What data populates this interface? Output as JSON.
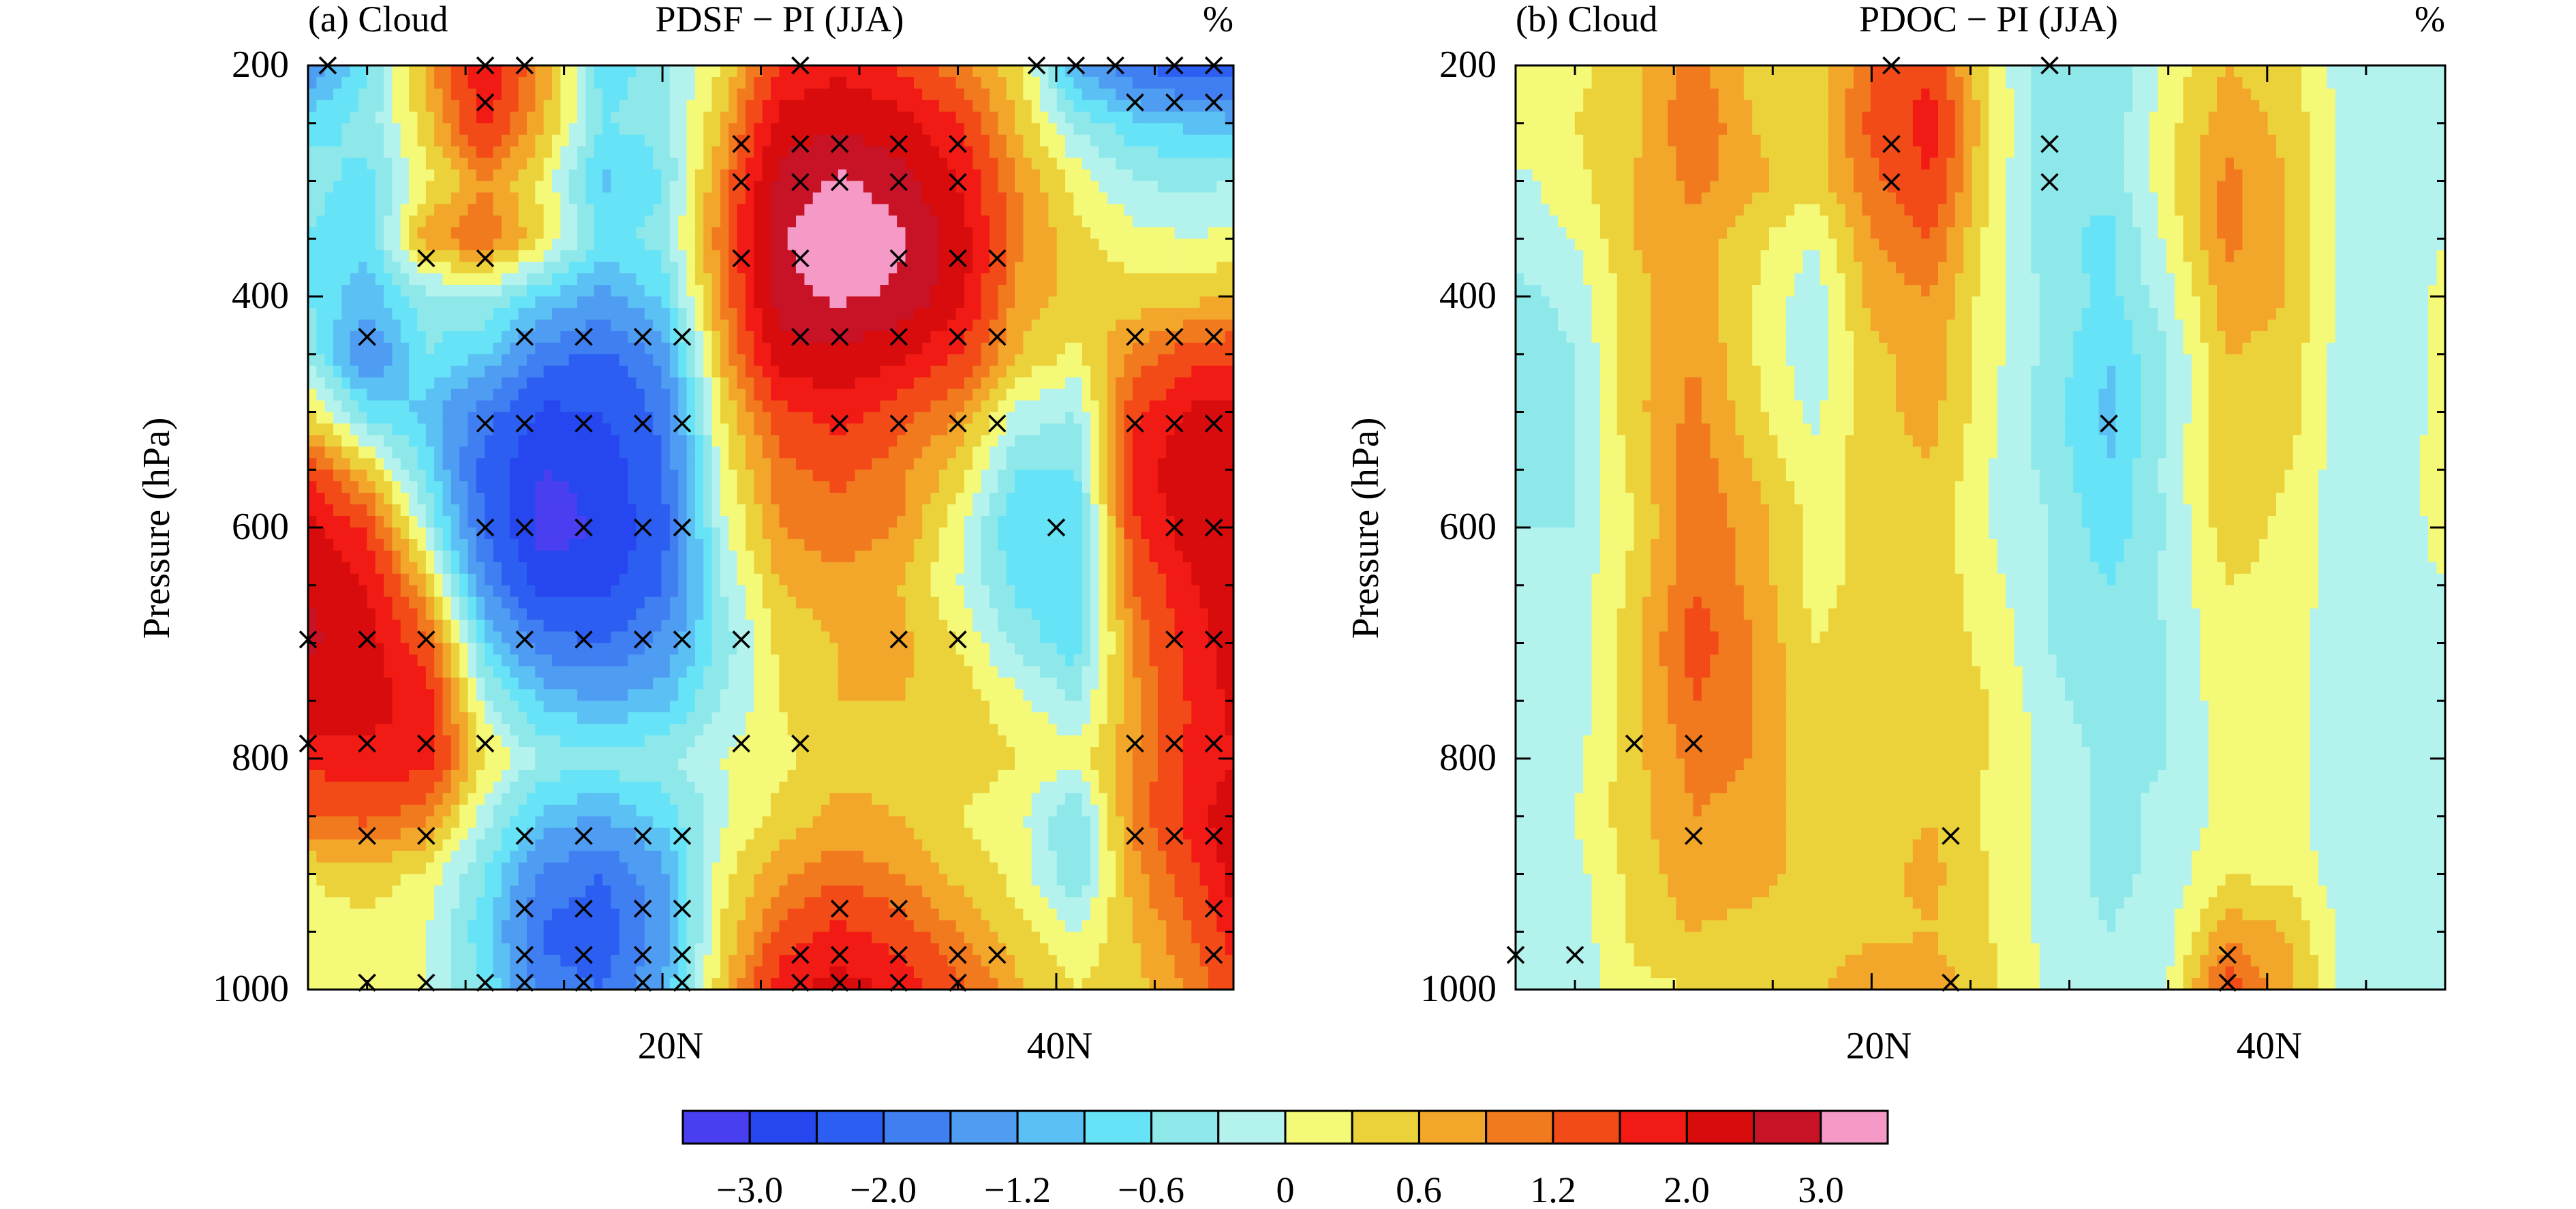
{
  "colormap": [
    "#4a3ff0",
    "#2646f0",
    "#2d5ef2",
    "#3f7ff2",
    "#4f9df2",
    "#5bc0f4",
    "#66e3f6",
    "#8ee8ea",
    "#b4f2ee",
    "#f4f978",
    "#ecd23a",
    "#f2a62a",
    "#f27a1e",
    "#f24b18",
    "#f21a14",
    "#d80c0c",
    "#c81226",
    "#f59ac6"
  ],
  "colorbar": {
    "tick_labels": [
      "−3.0",
      "−2.0",
      "−1.2",
      "−0.6",
      "0",
      "0.6",
      "1.2",
      "2.0",
      "3.0"
    ]
  },
  "chart_data": [
    {
      "type": "heatmap",
      "panel_label": "(a) Cloud",
      "title": "PDSF − PI (JJA)",
      "unit": "%",
      "ylabel": "Pressure (hPa)",
      "x_tick_labels": [
        "20N",
        "40N"
      ],
      "y_tick_labels": [
        "200",
        "400",
        "600",
        "800",
        "1000"
      ],
      "xlim_deg": [
        2,
        49
      ],
      "ylim_hpa": [
        1000,
        200
      ],
      "x_lat": [
        2,
        5,
        8,
        11,
        14,
        17,
        20,
        23,
        26,
        29,
        32,
        35,
        38,
        41,
        44,
        47,
        49
      ],
      "y_p": [
        200,
        250,
        300,
        350,
        400,
        450,
        500,
        550,
        600,
        650,
        700,
        750,
        800,
        850,
        900,
        950,
        1000
      ],
      "values": [
        [
          -1.6,
          -0.6,
          0.7,
          2.0,
          0.8,
          -0.8,
          -0.4,
          0.3,
          1.6,
          1.9,
          1.5,
          1.0,
          0.4,
          -1.2,
          -2.0,
          -2.4,
          -2.2
        ],
        [
          -0.7,
          -0.5,
          0.5,
          1.7,
          0.6,
          -0.6,
          -0.5,
          0.6,
          2.2,
          2.4,
          2.2,
          1.6,
          0.6,
          -0.4,
          -0.8,
          -1.0,
          -1.1
        ],
        [
          -0.5,
          -0.7,
          0.2,
          0.9,
          0.2,
          -1.0,
          -0.6,
          0.9,
          2.7,
          3.1,
          2.7,
          2.0,
          0.9,
          0.2,
          -0.3,
          -0.4,
          -0.3
        ],
        [
          -0.6,
          -0.8,
          0.8,
          1.2,
          0.3,
          -0.7,
          -0.5,
          1.1,
          2.9,
          3.6,
          3.1,
          2.3,
          1.0,
          0.4,
          0.1,
          0.0,
          0.1
        ],
        [
          -0.6,
          -1.1,
          -0.4,
          -0.3,
          -0.9,
          -1.3,
          -0.8,
          0.9,
          2.8,
          3.1,
          2.9,
          2.2,
          0.8,
          0.5,
          0.4,
          0.5,
          0.6
        ],
        [
          -0.4,
          -1.6,
          -0.6,
          -0.9,
          -1.8,
          -2.1,
          -1.5,
          0.7,
          2.3,
          2.4,
          2.1,
          1.6,
          0.6,
          0.2,
          1.0,
          1.4,
          1.5
        ],
        [
          0.3,
          -0.7,
          -1.0,
          -1.8,
          -2.6,
          -2.5,
          -1.9,
          0.3,
          1.5,
          1.8,
          1.4,
          0.9,
          -0.1,
          -0.3,
          1.5,
          2.1,
          2.2
        ],
        [
          1.5,
          0.5,
          -0.7,
          -2.2,
          -3.0,
          -2.8,
          -2.0,
          0.1,
          1.1,
          1.3,
          1.0,
          0.5,
          -0.6,
          -0.6,
          1.8,
          2.4,
          2.5
        ],
        [
          2.2,
          1.5,
          -0.2,
          -2.0,
          -3.3,
          -2.9,
          -2.2,
          -0.1,
          0.9,
          1.1,
          0.9,
          0.1,
          -0.9,
          -0.9,
          1.5,
          2.3,
          2.5
        ],
        [
          2.5,
          2.0,
          0.6,
          -1.6,
          -2.7,
          -2.7,
          -2.0,
          -0.3,
          0.6,
          0.8,
          0.6,
          0.0,
          -0.7,
          -0.8,
          1.2,
          2.0,
          2.3
        ],
        [
          2.6,
          2.2,
          1.3,
          -0.8,
          -1.8,
          -2.0,
          -1.5,
          -0.5,
          0.4,
          0.6,
          0.7,
          0.3,
          -0.4,
          -0.8,
          1.0,
          1.8,
          2.2
        ],
        [
          2.3,
          2.2,
          1.8,
          -0.2,
          -1.0,
          -1.2,
          -1.0,
          -0.3,
          0.3,
          0.6,
          0.6,
          0.5,
          0.1,
          -0.3,
          0.8,
          1.7,
          2.1
        ],
        [
          1.7,
          1.9,
          1.8,
          0.3,
          -0.4,
          -0.4,
          -0.4,
          0.0,
          0.2,
          0.5,
          0.5,
          0.5,
          0.3,
          0.1,
          0.9,
          1.7,
          2.0
        ],
        [
          1.2,
          1.3,
          1.0,
          -0.2,
          -1.0,
          -1.2,
          -0.8,
          -0.1,
          0.4,
          0.7,
          0.6,
          0.3,
          0.1,
          -0.6,
          1.0,
          1.8,
          2.3
        ],
        [
          0.3,
          0.5,
          0.2,
          -0.6,
          -1.7,
          -2.0,
          -1.3,
          0.2,
          0.8,
          1.1,
          0.9,
          0.5,
          0.2,
          -0.6,
          0.8,
          1.5,
          2.2
        ],
        [
          0.1,
          0.2,
          0.0,
          -0.8,
          -2.1,
          -2.3,
          -1.4,
          0.3,
          1.3,
          1.7,
          1.4,
          0.9,
          0.4,
          0.0,
          0.6,
          1.2,
          1.8
        ],
        [
          0.2,
          0.1,
          0.0,
          -0.6,
          -1.8,
          -2.0,
          -1.2,
          0.5,
          1.9,
          2.2,
          1.9,
          1.3,
          0.7,
          0.3,
          0.5,
          1.0,
          1.5
        ]
      ],
      "significance_markers": [
        [
          3,
          200
        ],
        [
          11,
          200
        ],
        [
          13,
          200
        ],
        [
          27,
          200
        ],
        [
          39,
          200
        ],
        [
          41,
          200
        ],
        [
          43,
          200
        ],
        [
          46,
          200
        ],
        [
          48,
          200
        ],
        [
          11,
          232
        ],
        [
          44,
          232
        ],
        [
          46,
          232
        ],
        [
          48,
          232
        ],
        [
          24,
          268
        ],
        [
          27,
          268
        ],
        [
          29,
          268
        ],
        [
          32,
          268
        ],
        [
          35,
          268
        ],
        [
          24,
          301
        ],
        [
          27,
          301
        ],
        [
          29,
          301
        ],
        [
          32,
          301
        ],
        [
          35,
          301
        ],
        [
          8,
          367
        ],
        [
          11,
          367
        ],
        [
          24,
          367
        ],
        [
          27,
          367
        ],
        [
          32,
          367
        ],
        [
          35,
          367
        ],
        [
          37,
          367
        ],
        [
          5,
          435
        ],
        [
          13,
          435
        ],
        [
          16,
          435
        ],
        [
          19,
          435
        ],
        [
          21,
          435
        ],
        [
          27,
          435
        ],
        [
          29,
          435
        ],
        [
          32,
          435
        ],
        [
          35,
          435
        ],
        [
          37,
          435
        ],
        [
          44,
          435
        ],
        [
          46,
          435
        ],
        [
          48,
          435
        ],
        [
          11,
          510
        ],
        [
          13,
          510
        ],
        [
          16,
          510
        ],
        [
          19,
          510
        ],
        [
          21,
          510
        ],
        [
          29,
          510
        ],
        [
          32,
          510
        ],
        [
          35,
          510
        ],
        [
          37,
          510
        ],
        [
          44,
          510
        ],
        [
          46,
          510
        ],
        [
          48,
          510
        ],
        [
          11,
          600
        ],
        [
          13,
          600
        ],
        [
          16,
          600
        ],
        [
          19,
          600
        ],
        [
          21,
          600
        ],
        [
          40,
          600
        ],
        [
          46,
          600
        ],
        [
          48,
          600
        ],
        [
          2,
          697
        ],
        [
          5,
          697
        ],
        [
          8,
          697
        ],
        [
          13,
          697
        ],
        [
          16,
          697
        ],
        [
          19,
          697
        ],
        [
          21,
          697
        ],
        [
          24,
          697
        ],
        [
          32,
          697
        ],
        [
          35,
          697
        ],
        [
          46,
          697
        ],
        [
          48,
          697
        ],
        [
          2,
          787
        ],
        [
          5,
          787
        ],
        [
          8,
          787
        ],
        [
          11,
          787
        ],
        [
          24,
          787
        ],
        [
          27,
          787
        ],
        [
          44,
          787
        ],
        [
          46,
          787
        ],
        [
          48,
          787
        ],
        [
          5,
          867
        ],
        [
          8,
          867
        ],
        [
          13,
          867
        ],
        [
          16,
          867
        ],
        [
          19,
          867
        ],
        [
          21,
          867
        ],
        [
          44,
          867
        ],
        [
          46,
          867
        ],
        [
          48,
          867
        ],
        [
          13,
          930
        ],
        [
          16,
          930
        ],
        [
          19,
          930
        ],
        [
          21,
          930
        ],
        [
          29,
          930
        ],
        [
          32,
          930
        ],
        [
          48,
          930
        ],
        [
          13,
          970
        ],
        [
          16,
          970
        ],
        [
          19,
          970
        ],
        [
          21,
          970
        ],
        [
          27,
          970
        ],
        [
          29,
          970
        ],
        [
          32,
          970
        ],
        [
          35,
          970
        ],
        [
          37,
          970
        ],
        [
          48,
          970
        ],
        [
          5,
          994
        ],
        [
          8,
          994
        ],
        [
          11,
          994
        ],
        [
          13,
          994
        ],
        [
          16,
          994
        ],
        [
          19,
          994
        ],
        [
          21,
          994
        ],
        [
          27,
          994
        ],
        [
          29,
          994
        ],
        [
          32,
          994
        ],
        [
          35,
          994
        ]
      ]
    },
    {
      "type": "heatmap",
      "panel_label": "(b) Cloud",
      "title": "PDOC − PI (JJA)",
      "unit": "%",
      "ylabel": "Pressure (hPa)",
      "x_tick_labels": [
        "20N",
        "40N"
      ],
      "y_tick_labels": [
        "200",
        "400",
        "600",
        "800",
        "1000"
      ],
      "xlim_deg": [
        2,
        49
      ],
      "ylim_hpa": [
        1000,
        200
      ],
      "x_lat": [
        2,
        5,
        8,
        11,
        14,
        17,
        20,
        23,
        26,
        29,
        32,
        35,
        38,
        41,
        44,
        47,
        49
      ],
      "y_p": [
        200,
        250,
        300,
        350,
        400,
        450,
        500,
        550,
        600,
        650,
        700,
        750,
        800,
        850,
        900,
        950,
        1000
      ],
      "values": [
        [
          0.1,
          0.2,
          0.5,
          1.0,
          0.5,
          0.3,
          1.2,
          1.5,
          0.2,
          -0.5,
          -0.6,
          0.1,
          0.6,
          0.4,
          -0.2,
          -0.3,
          -0.2
        ],
        [
          0.2,
          0.3,
          0.5,
          1.2,
          0.6,
          0.4,
          1.3,
          1.8,
          0.3,
          -0.5,
          -0.5,
          0.2,
          0.8,
          0.5,
          -0.1,
          -0.3,
          -0.1
        ],
        [
          -0.1,
          0.2,
          0.6,
          1.0,
          0.7,
          0.4,
          1.1,
          1.6,
          0.2,
          -0.5,
          -0.5,
          0.2,
          1.0,
          0.6,
          -0.1,
          -0.2,
          -0.1
        ],
        [
          -0.2,
          0.0,
          0.6,
          0.8,
          0.4,
          0.0,
          0.9,
          1.2,
          0.2,
          -0.5,
          -0.7,
          0.1,
          1.0,
          0.6,
          -0.1,
          -0.3,
          0.0
        ],
        [
          -0.4,
          -0.2,
          0.5,
          0.8,
          0.3,
          -0.2,
          0.7,
          0.9,
          0.1,
          -0.4,
          -0.7,
          -0.1,
          0.8,
          0.6,
          -0.1,
          -0.3,
          0.2
        ],
        [
          -0.5,
          -0.3,
          0.5,
          0.9,
          0.3,
          -0.2,
          0.5,
          0.8,
          0.1,
          -0.4,
          -0.9,
          -0.3,
          0.6,
          0.5,
          -0.2,
          -0.3,
          0.2
        ],
        [
          -0.5,
          -0.3,
          0.5,
          1.0,
          0.4,
          -0.1,
          0.5,
          0.7,
          0.1,
          -0.5,
          -1.0,
          -0.3,
          0.6,
          0.5,
          -0.2,
          -0.3,
          0.3
        ],
        [
          -0.4,
          -0.3,
          0.4,
          1.1,
          0.6,
          0.1,
          0.5,
          0.6,
          0.0,
          -0.4,
          -0.9,
          -0.2,
          0.6,
          0.3,
          -0.2,
          -0.2,
          0.3
        ],
        [
          -0.3,
          -0.3,
          0.3,
          1.1,
          0.8,
          0.2,
          0.4,
          0.5,
          0.0,
          -0.3,
          -0.8,
          -0.3,
          0.5,
          0.2,
          -0.2,
          -0.2,
          0.2
        ],
        [
          -0.3,
          -0.2,
          0.4,
          1.2,
          0.8,
          0.2,
          0.4,
          0.5,
          0.1,
          -0.3,
          -0.6,
          -0.2,
          0.3,
          0.2,
          -0.2,
          -0.2,
          0.0
        ],
        [
          -0.3,
          -0.2,
          0.5,
          1.4,
          0.9,
          0.3,
          0.4,
          0.5,
          0.2,
          -0.3,
          -0.6,
          -0.3,
          0.2,
          0.1,
          -0.2,
          -0.2,
          -0.1
        ],
        [
          -0.3,
          -0.2,
          0.5,
          1.2,
          0.9,
          0.4,
          0.4,
          0.5,
          0.3,
          -0.2,
          -0.5,
          -0.3,
          0.2,
          0.1,
          -0.2,
          -0.2,
          -0.2
        ],
        [
          -0.2,
          -0.1,
          0.5,
          1.0,
          0.9,
          0.4,
          0.4,
          0.5,
          0.3,
          -0.1,
          -0.4,
          -0.3,
          0.1,
          0.1,
          -0.2,
          -0.3,
          -0.2
        ],
        [
          -0.2,
          0.0,
          0.5,
          0.9,
          0.8,
          0.4,
          0.4,
          0.6,
          0.2,
          -0.1,
          -0.4,
          -0.2,
          0.1,
          0.1,
          -0.2,
          -0.3,
          -0.2
        ],
        [
          -0.3,
          -0.1,
          0.4,
          0.8,
          0.7,
          0.5,
          0.5,
          0.7,
          0.3,
          -0.1,
          -0.4,
          -0.2,
          0.3,
          0.2,
          -0.2,
          -0.3,
          -0.3
        ],
        [
          -0.3,
          -0.2,
          0.4,
          0.6,
          0.5,
          0.4,
          0.5,
          0.6,
          0.3,
          -0.1,
          -0.3,
          -0.1,
          0.8,
          0.6,
          -0.1,
          -0.3,
          -0.2
        ],
        [
          -0.3,
          -0.2,
          0.2,
          0.3,
          0.3,
          0.5,
          0.9,
          0.8,
          0.4,
          -0.1,
          -0.3,
          0.0,
          1.4,
          0.7,
          -0.1,
          -0.2,
          -0.2
        ]
      ],
      "significance_markers": [
        [
          21,
          200
        ],
        [
          29,
          200
        ],
        [
          21,
          268
        ],
        [
          29,
          268
        ],
        [
          21,
          301
        ],
        [
          29,
          301
        ],
        [
          32,
          510
        ],
        [
          8,
          787
        ],
        [
          11,
          787
        ],
        [
          11,
          867
        ],
        [
          24,
          867
        ],
        [
          2,
          970
        ],
        [
          5,
          970
        ],
        [
          38,
          970
        ],
        [
          24,
          994
        ],
        [
          38,
          994
        ]
      ]
    }
  ]
}
